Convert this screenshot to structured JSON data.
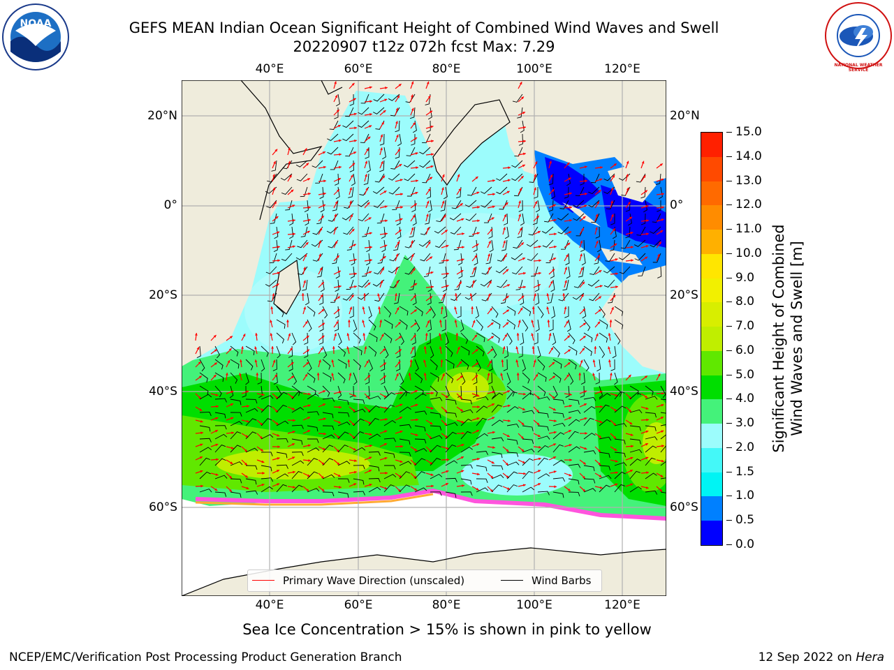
{
  "header": {
    "title": "GEFS MEAN Indian Ocean Significant Height of Combined Wind Waves and Swell",
    "subtitle": "20220907 t12z 072h fcst   Max: 7.29",
    "left_logo_text": "NOAA",
    "right_logo_text": "NATIONAL WEATHER SERVICE"
  },
  "map": {
    "lon_ticks": [
      "40°E",
      "60°E",
      "80°E",
      "100°E",
      "120°E"
    ],
    "lat_ticks": [
      "20°N",
      "0°",
      "20°S",
      "40°S",
      "60°S"
    ],
    "region": "Indian Ocean",
    "lon_range": [
      21,
      130
    ],
    "lat_range": [
      -79,
      28
    ]
  },
  "colorbar": {
    "label_line1": "Significant Height of Combined",
    "label_line2": "Wind Waves and Swell [m]",
    "ticks": [
      "15.0",
      "14.0",
      "13.0",
      "12.0",
      "11.0",
      "10.0",
      "9.0",
      "8.0",
      "7.0",
      "6.0",
      "5.0",
      "4.0",
      "3.0",
      "2.0",
      "1.5",
      "1.0",
      "0.5",
      "0.0"
    ],
    "colors": [
      "#ff0000",
      "#ff2000",
      "#ff4a00",
      "#ff6a00",
      "#ff8c00",
      "#ffb000",
      "#ffe600",
      "#f2f000",
      "#d8ee00",
      "#c0ee00",
      "#60e800",
      "#00de00",
      "#44f27a",
      "#9cfcfc",
      "#44f8f8",
      "#00f4f4",
      "#0080ff",
      "#0000ff"
    ]
  },
  "legend": {
    "wave_dir_label": "Primary Wave Direction (unscaled)",
    "wind_barbs_label": "Wind Barbs",
    "wave_color": "#ff0000",
    "barb_color": "#000000"
  },
  "caption": "Sea Ice Concentration > 15% is shown in pink to yellow",
  "footer": {
    "left": "NCEP/EMC/Verification Post Processing Product Generation Branch",
    "date": "12 Sep 2022 on ",
    "machine": "Hera"
  }
}
